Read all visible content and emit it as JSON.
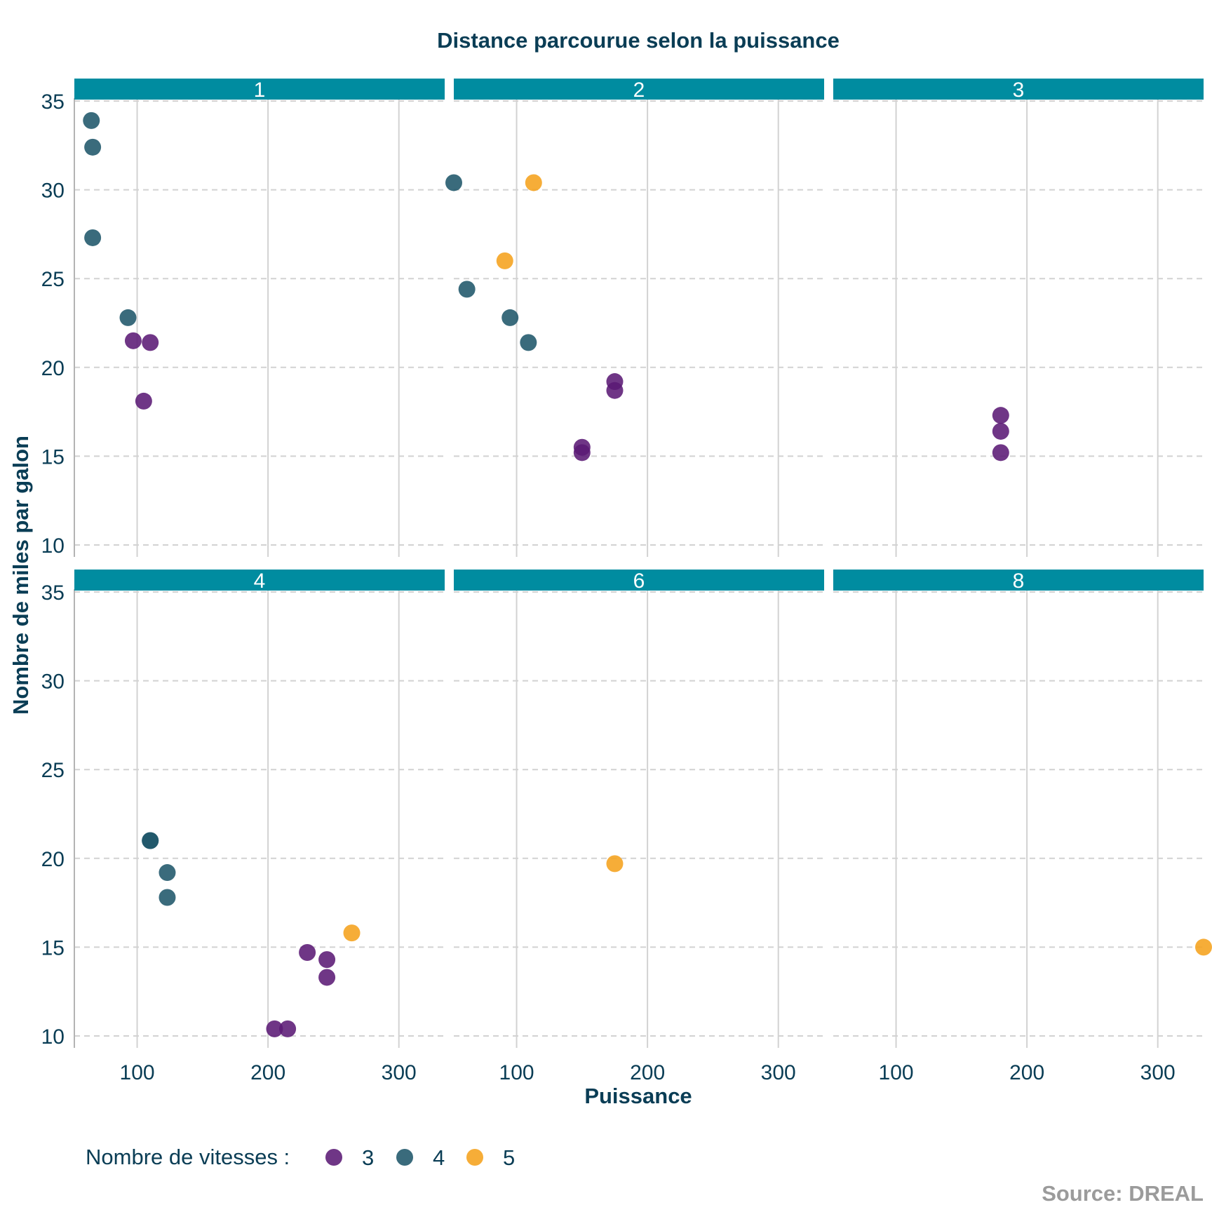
{
  "chart_data": {
    "type": "scatter",
    "title": "Distance parcourue selon la puissance",
    "xlabel": "Puissance",
    "ylabel": "Nombre de miles par galon",
    "xlim": [
      52,
      335
    ],
    "ylim": [
      10,
      35
    ],
    "x_ticks": [
      100,
      200,
      300
    ],
    "y_ticks": [
      10,
      15,
      20,
      25,
      30,
      35
    ],
    "grid": true,
    "legend": {
      "title": "Nombre de vitesses :",
      "position": "bottom-left",
      "entries": [
        "3",
        "4",
        "5"
      ]
    },
    "colors": {
      "3": "#5b1a75",
      "4": "#1f566a",
      "5": "#f5a21c"
    },
    "panels": [
      {
        "label": "1",
        "points": [
          {
            "x": 66,
            "y": 32.4,
            "gear": "4"
          },
          {
            "x": 65,
            "y": 33.9,
            "gear": "4"
          },
          {
            "x": 66,
            "y": 27.3,
            "gear": "4"
          },
          {
            "x": 93,
            "y": 22.8,
            "gear": "4"
          },
          {
            "x": 97,
            "y": 21.5,
            "gear": "3"
          },
          {
            "x": 110,
            "y": 21.4,
            "gear": "3"
          },
          {
            "x": 105,
            "y": 18.1,
            "gear": "3"
          }
        ]
      },
      {
        "label": "2",
        "points": [
          {
            "x": 52,
            "y": 30.4,
            "gear": "4"
          },
          {
            "x": 113,
            "y": 30.4,
            "gear": "5"
          },
          {
            "x": 91,
            "y": 26.0,
            "gear": "5"
          },
          {
            "x": 62,
            "y": 24.4,
            "gear": "4"
          },
          {
            "x": 95,
            "y": 22.8,
            "gear": "4"
          },
          {
            "x": 109,
            "y": 21.4,
            "gear": "4"
          },
          {
            "x": 175,
            "y": 19.2,
            "gear": "3"
          },
          {
            "x": 175,
            "y": 18.7,
            "gear": "3"
          },
          {
            "x": 150,
            "y": 15.5,
            "gear": "3"
          },
          {
            "x": 150,
            "y": 15.2,
            "gear": "3"
          }
        ]
      },
      {
        "label": "3",
        "points": [
          {
            "x": 180,
            "y": 17.3,
            "gear": "3"
          },
          {
            "x": 180,
            "y": 16.4,
            "gear": "3"
          },
          {
            "x": 180,
            "y": 15.2,
            "gear": "3"
          }
        ]
      },
      {
        "label": "4",
        "points": [
          {
            "x": 110,
            "y": 21.0,
            "gear": "4"
          },
          {
            "x": 110,
            "y": 21.0,
            "gear": "4"
          },
          {
            "x": 123,
            "y": 19.2,
            "gear": "4"
          },
          {
            "x": 123,
            "y": 17.8,
            "gear": "4"
          },
          {
            "x": 264,
            "y": 15.8,
            "gear": "5"
          },
          {
            "x": 230,
            "y": 14.7,
            "gear": "3"
          },
          {
            "x": 245,
            "y": 14.3,
            "gear": "3"
          },
          {
            "x": 245,
            "y": 13.3,
            "gear": "3"
          },
          {
            "x": 205,
            "y": 10.4,
            "gear": "3"
          },
          {
            "x": 215,
            "y": 10.4,
            "gear": "3"
          }
        ]
      },
      {
        "label": "6",
        "points": [
          {
            "x": 175,
            "y": 19.7,
            "gear": "5"
          }
        ]
      },
      {
        "label": "8",
        "points": [
          {
            "x": 335,
            "y": 15.0,
            "gear": "5"
          }
        ]
      }
    ],
    "source": "Source: DREAL"
  }
}
